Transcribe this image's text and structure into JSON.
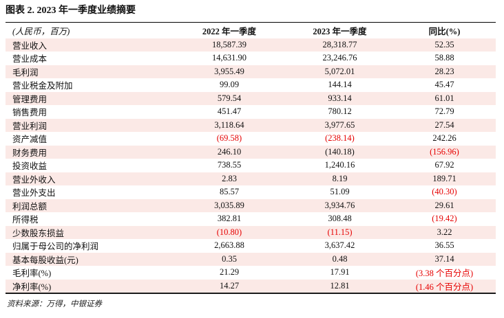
{
  "title": "图表 2. 2023 年一季度业绩摘要",
  "source": "资料来源：万得，中银证券",
  "colors": {
    "stripe": "#fbe9e6",
    "negative_red": "#e60000",
    "text": "#111111",
    "rule": "#1a1a1a"
  },
  "table": {
    "columns": [
      "(人民币，百万)",
      "2022 年一季度",
      "2023 年一季度",
      "同比(%)"
    ],
    "rows": [
      {
        "label": "营业收入",
        "v2022": "18,587.39",
        "v2023": "28,318.77",
        "yoy": "52.35",
        "red": []
      },
      {
        "label": "营业成本",
        "v2022": "14,631.90",
        "v2023": "23,246.76",
        "yoy": "58.88",
        "red": []
      },
      {
        "label": "毛利润",
        "v2022": "3,955.49",
        "v2023": "5,072.01",
        "yoy": "28.23",
        "red": []
      },
      {
        "label": "营业税金及附加",
        "v2022": "99.09",
        "v2023": "144.14",
        "yoy": "45.47",
        "red": []
      },
      {
        "label": "管理费用",
        "v2022": "579.54",
        "v2023": "933.14",
        "yoy": "61.01",
        "red": []
      },
      {
        "label": "销售费用",
        "v2022": "451.47",
        "v2023": "780.12",
        "yoy": "72.79",
        "red": []
      },
      {
        "label": "营业利润",
        "v2022": "3,118.64",
        "v2023": "3,977.65",
        "yoy": "27.54",
        "red": []
      },
      {
        "label": "资产减值",
        "v2022": "(69.58)",
        "v2023": "(238.14)",
        "yoy": "242.26",
        "red": [
          "v2022",
          "v2023"
        ]
      },
      {
        "label": "财务费用",
        "v2022": "246.10",
        "v2023": "(140.18)",
        "yoy": "(156.96)",
        "red": [
          "yoy"
        ]
      },
      {
        "label": "投资收益",
        "v2022": "738.55",
        "v2023": "1,240.16",
        "yoy": "67.92",
        "red": []
      },
      {
        "label": "营业外收入",
        "v2022": "2.83",
        "v2023": "8.19",
        "yoy": "189.71",
        "red": []
      },
      {
        "label": "营业外支出",
        "v2022": "85.57",
        "v2023": "51.09",
        "yoy": "(40.30)",
        "red": [
          "yoy"
        ]
      },
      {
        "label": "利润总额",
        "v2022": "3,035.89",
        "v2023": "3,934.76",
        "yoy": "29.61",
        "red": []
      },
      {
        "label": "所得税",
        "v2022": "382.81",
        "v2023": "308.48",
        "yoy": "(19.42)",
        "red": [
          "yoy"
        ]
      },
      {
        "label": "少数股东损益",
        "v2022": "(10.80)",
        "v2023": "(11.15)",
        "yoy": "3.22",
        "red": [
          "v2022",
          "v2023"
        ]
      },
      {
        "label": "归属于母公司的净利润",
        "v2022": "2,663.88",
        "v2023": "3,637.42",
        "yoy": "36.55",
        "red": []
      },
      {
        "label": "基本每股收益(元)",
        "v2022": "0.35",
        "v2023": "0.48",
        "yoy": "37.14",
        "red": []
      },
      {
        "label": "毛利率(%)",
        "v2022": "21.29",
        "v2023": "17.91",
        "yoy": "(3.38 个百分点)",
        "red": [
          "yoy"
        ]
      },
      {
        "label": "净利率(%)",
        "v2022": "14.27",
        "v2023": "12.81",
        "yoy": "(1.46 个百分点)",
        "red": [
          "yoy"
        ]
      }
    ]
  }
}
